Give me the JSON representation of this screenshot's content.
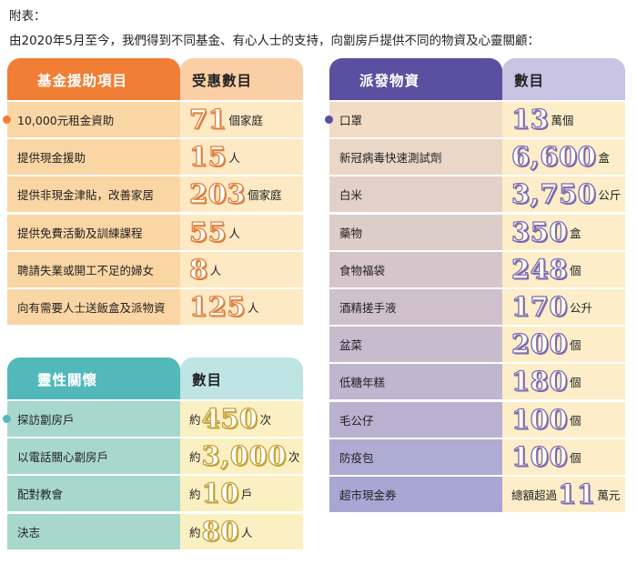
{
  "intro": {
    "line1": "附表：",
    "line2": "由2020年5月至今，我們得到不同基金、有心人士的支持，向劏房戶提供不同的物資及心靈關顧："
  },
  "colors": {
    "fund_header": "#f07e34",
    "fund_header_right": "#fbcfa6",
    "fund_row_left": "#fbd6a5",
    "fund_row_right": "#fde9c4",
    "fund_num_outline": "#e07f3c",
    "spirit_header": "#53b8ba",
    "spirit_header_right": "#bfe4e4",
    "spirit_row_left": "#a8d8cb",
    "spirit_row_right": "#fbf0c2",
    "spirit_num_outline": "#c6a23b",
    "supply_header": "#5a4fa0",
    "supply_header_right": "#c9c3e4",
    "supply_row_left_top": "#f2dcc6",
    "supply_row_left_bottom": "#a9a6d3",
    "supply_row_right": "#fdeec9",
    "supply_num_outline": "#7e6aac"
  },
  "fund": {
    "header_left": "基金援助項目",
    "header_right": "受惠數目",
    "rows": [
      {
        "label": "10,000元租金資助",
        "value": "71",
        "unit": "個家庭"
      },
      {
        "label": "提供現金援助",
        "value": "15",
        "unit": "人"
      },
      {
        "label": "提供非現金津貼，改善家居",
        "value": "203",
        "unit": "個家庭"
      },
      {
        "label": "提供免費活動及訓練課程",
        "value": "55",
        "unit": "人"
      },
      {
        "label": "聘請失業或開工不足的婦女",
        "value": "8",
        "unit": "人"
      },
      {
        "label": "向有需要人士送飯盒及派物資",
        "value": "125",
        "unit": "人"
      }
    ]
  },
  "spirit": {
    "header_left": "靈性關懷",
    "header_right": "數目",
    "rows": [
      {
        "label": "探訪劏房戶",
        "prefix": "約",
        "value": "450",
        "unit": "次"
      },
      {
        "label": "以電話關心劏房戶",
        "prefix": "約",
        "value": "3,000",
        "unit": "次"
      },
      {
        "label": "配對教會",
        "prefix": "約",
        "value": "10",
        "unit": "戶"
      },
      {
        "label": "決志",
        "prefix": "約",
        "value": "80",
        "unit": "人"
      }
    ]
  },
  "supplies": {
    "header_left": "派發物資",
    "header_right": "數目",
    "rows": [
      {
        "label": "口罩",
        "prefix": "",
        "value": "13",
        "unit": "萬個"
      },
      {
        "label": "新冠病毒快速測試劑",
        "prefix": "",
        "value": "6,600",
        "unit": "盒"
      },
      {
        "label": "白米",
        "prefix": "",
        "value": "3,750",
        "unit": "公斤"
      },
      {
        "label": "藥物",
        "prefix": "",
        "value": "350",
        "unit": "盒"
      },
      {
        "label": "食物福袋",
        "prefix": "",
        "value": "248",
        "unit": "個"
      },
      {
        "label": "酒精搓手液",
        "prefix": "",
        "value": "170",
        "unit": "公升"
      },
      {
        "label": "盆菜",
        "prefix": "",
        "value": "200",
        "unit": "個"
      },
      {
        "label": "低糖年糕",
        "prefix": "",
        "value": "180",
        "unit": "個"
      },
      {
        "label": "毛公仔",
        "prefix": "",
        "value": "100",
        "unit": "個"
      },
      {
        "label": "防疫包",
        "prefix": "",
        "value": "100",
        "unit": "個"
      },
      {
        "label": "超市現金券",
        "prefix": "總額超過",
        "value": "11",
        "unit": "萬元"
      }
    ]
  }
}
